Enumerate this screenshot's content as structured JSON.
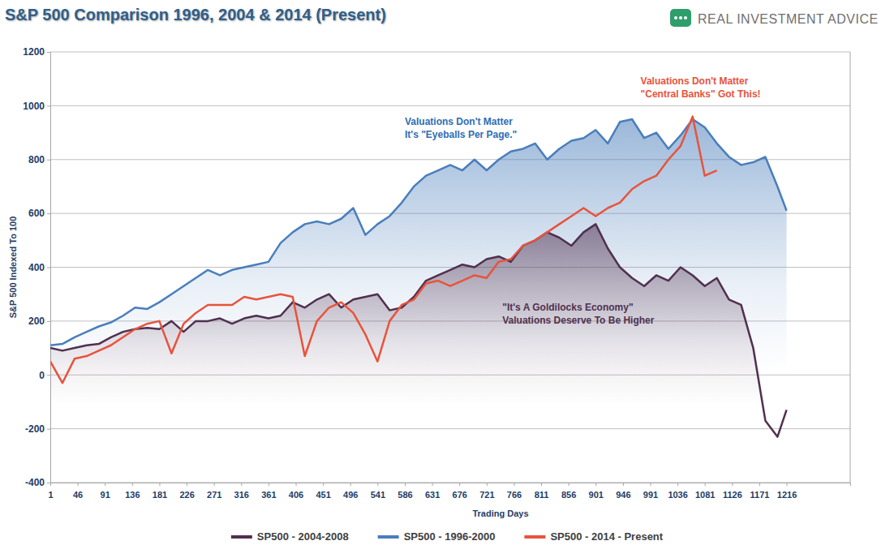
{
  "chart_data": {
    "type": "line",
    "title": "S&P 500 Comparison 1996, 2004 & 2014 (Present)",
    "logo": "REAL INVESTMENT ADVICE",
    "x_label": "Trading Days",
    "y_label": "S&P 500 Indexed To 100",
    "xlim": [
      1,
      1321
    ],
    "ylim": [
      -400,
      1200
    ],
    "xticks": [
      1,
      46,
      91,
      136,
      181,
      226,
      271,
      316,
      361,
      406,
      451,
      496,
      541,
      586,
      631,
      676,
      721,
      766,
      811,
      856,
      901,
      946,
      991,
      1036,
      1081,
      1126,
      1171,
      1216
    ],
    "yticks": [
      -400,
      -200,
      0,
      200,
      400,
      600,
      800,
      1000,
      1200
    ],
    "grid": true,
    "legend": "bottom",
    "x": [
      1,
      21,
      41,
      61,
      81,
      101,
      121,
      141,
      161,
      181,
      201,
      221,
      241,
      261,
      281,
      301,
      321,
      341,
      361,
      381,
      401,
      421,
      441,
      461,
      481,
      501,
      521,
      541,
      561,
      581,
      601,
      621,
      641,
      661,
      681,
      701,
      721,
      741,
      761,
      781,
      801,
      821,
      841,
      861,
      881,
      901,
      921,
      941,
      961,
      981,
      1001,
      1021,
      1041,
      1061,
      1081,
      1101,
      1121,
      1141,
      1161,
      1181,
      1201,
      1216
    ],
    "series": [
      {
        "name": "SP500 - 2004-2008",
        "color": "#50304f",
        "values": [
          100,
          90,
          100,
          110,
          115,
          140,
          160,
          170,
          175,
          170,
          200,
          160,
          200,
          200,
          210,
          190,
          210,
          220,
          210,
          220,
          270,
          250,
          280,
          300,
          250,
          280,
          290,
          300,
          240,
          250,
          290,
          350,
          370,
          390,
          410,
          400,
          430,
          440,
          420,
          480,
          500,
          530,
          510,
          480,
          530,
          560,
          470,
          400,
          360,
          330,
          370,
          350,
          400,
          370,
          330,
          360,
          280,
          260,
          100,
          -170,
          -230,
          -130
        ]
      },
      {
        "name": "SP500 - 1996-2000",
        "color": "#4a7ebb",
        "values": [
          110,
          115,
          140,
          160,
          180,
          195,
          220,
          250,
          245,
          270,
          300,
          330,
          360,
          390,
          370,
          390,
          400,
          410,
          420,
          490,
          530,
          560,
          570,
          560,
          580,
          620,
          520,
          560,
          590,
          640,
          700,
          740,
          760,
          780,
          760,
          800,
          760,
          800,
          830,
          840,
          860,
          800,
          840,
          870,
          880,
          910,
          860,
          940,
          950,
          880,
          900,
          840,
          890,
          950,
          920,
          860,
          810,
          780,
          790,
          810,
          700,
          610
        ]
      },
      {
        "name": "SP500 - 2014 - Present",
        "color": "#e8533c",
        "values": [
          50,
          -30,
          60,
          70,
          90,
          110,
          140,
          170,
          190,
          200,
          80,
          190,
          230,
          260,
          260,
          260,
          290,
          280,
          290,
          300,
          290,
          70,
          200,
          250,
          270,
          230,
          150,
          50,
          200,
          260,
          280,
          340,
          350,
          330,
          350,
          370,
          360,
          420,
          430,
          480,
          500,
          530,
          560,
          590,
          620,
          590,
          620,
          640,
          690,
          720,
          740,
          800,
          850,
          960,
          740,
          760,
          null,
          null,
          null,
          null,
          null,
          null
        ]
      }
    ],
    "annotations": [
      {
        "text": [
          "Valuations Don't Matter",
          "It's \"Eyeballs Per Page.\""
        ],
        "x": 586,
        "y": 930,
        "color": "#2e6db4"
      },
      {
        "text": [
          "Valuations Don't Matter",
          "\"Central Banks\" Got This!"
        ],
        "x": 975,
        "y": 1080,
        "color": "#e8533c"
      },
      {
        "text": [
          "\"It's A Goldilocks Economy\"",
          "Valuations Deserve To Be Higher"
        ],
        "x": 747,
        "y": 240,
        "color": "#50304f"
      }
    ]
  }
}
